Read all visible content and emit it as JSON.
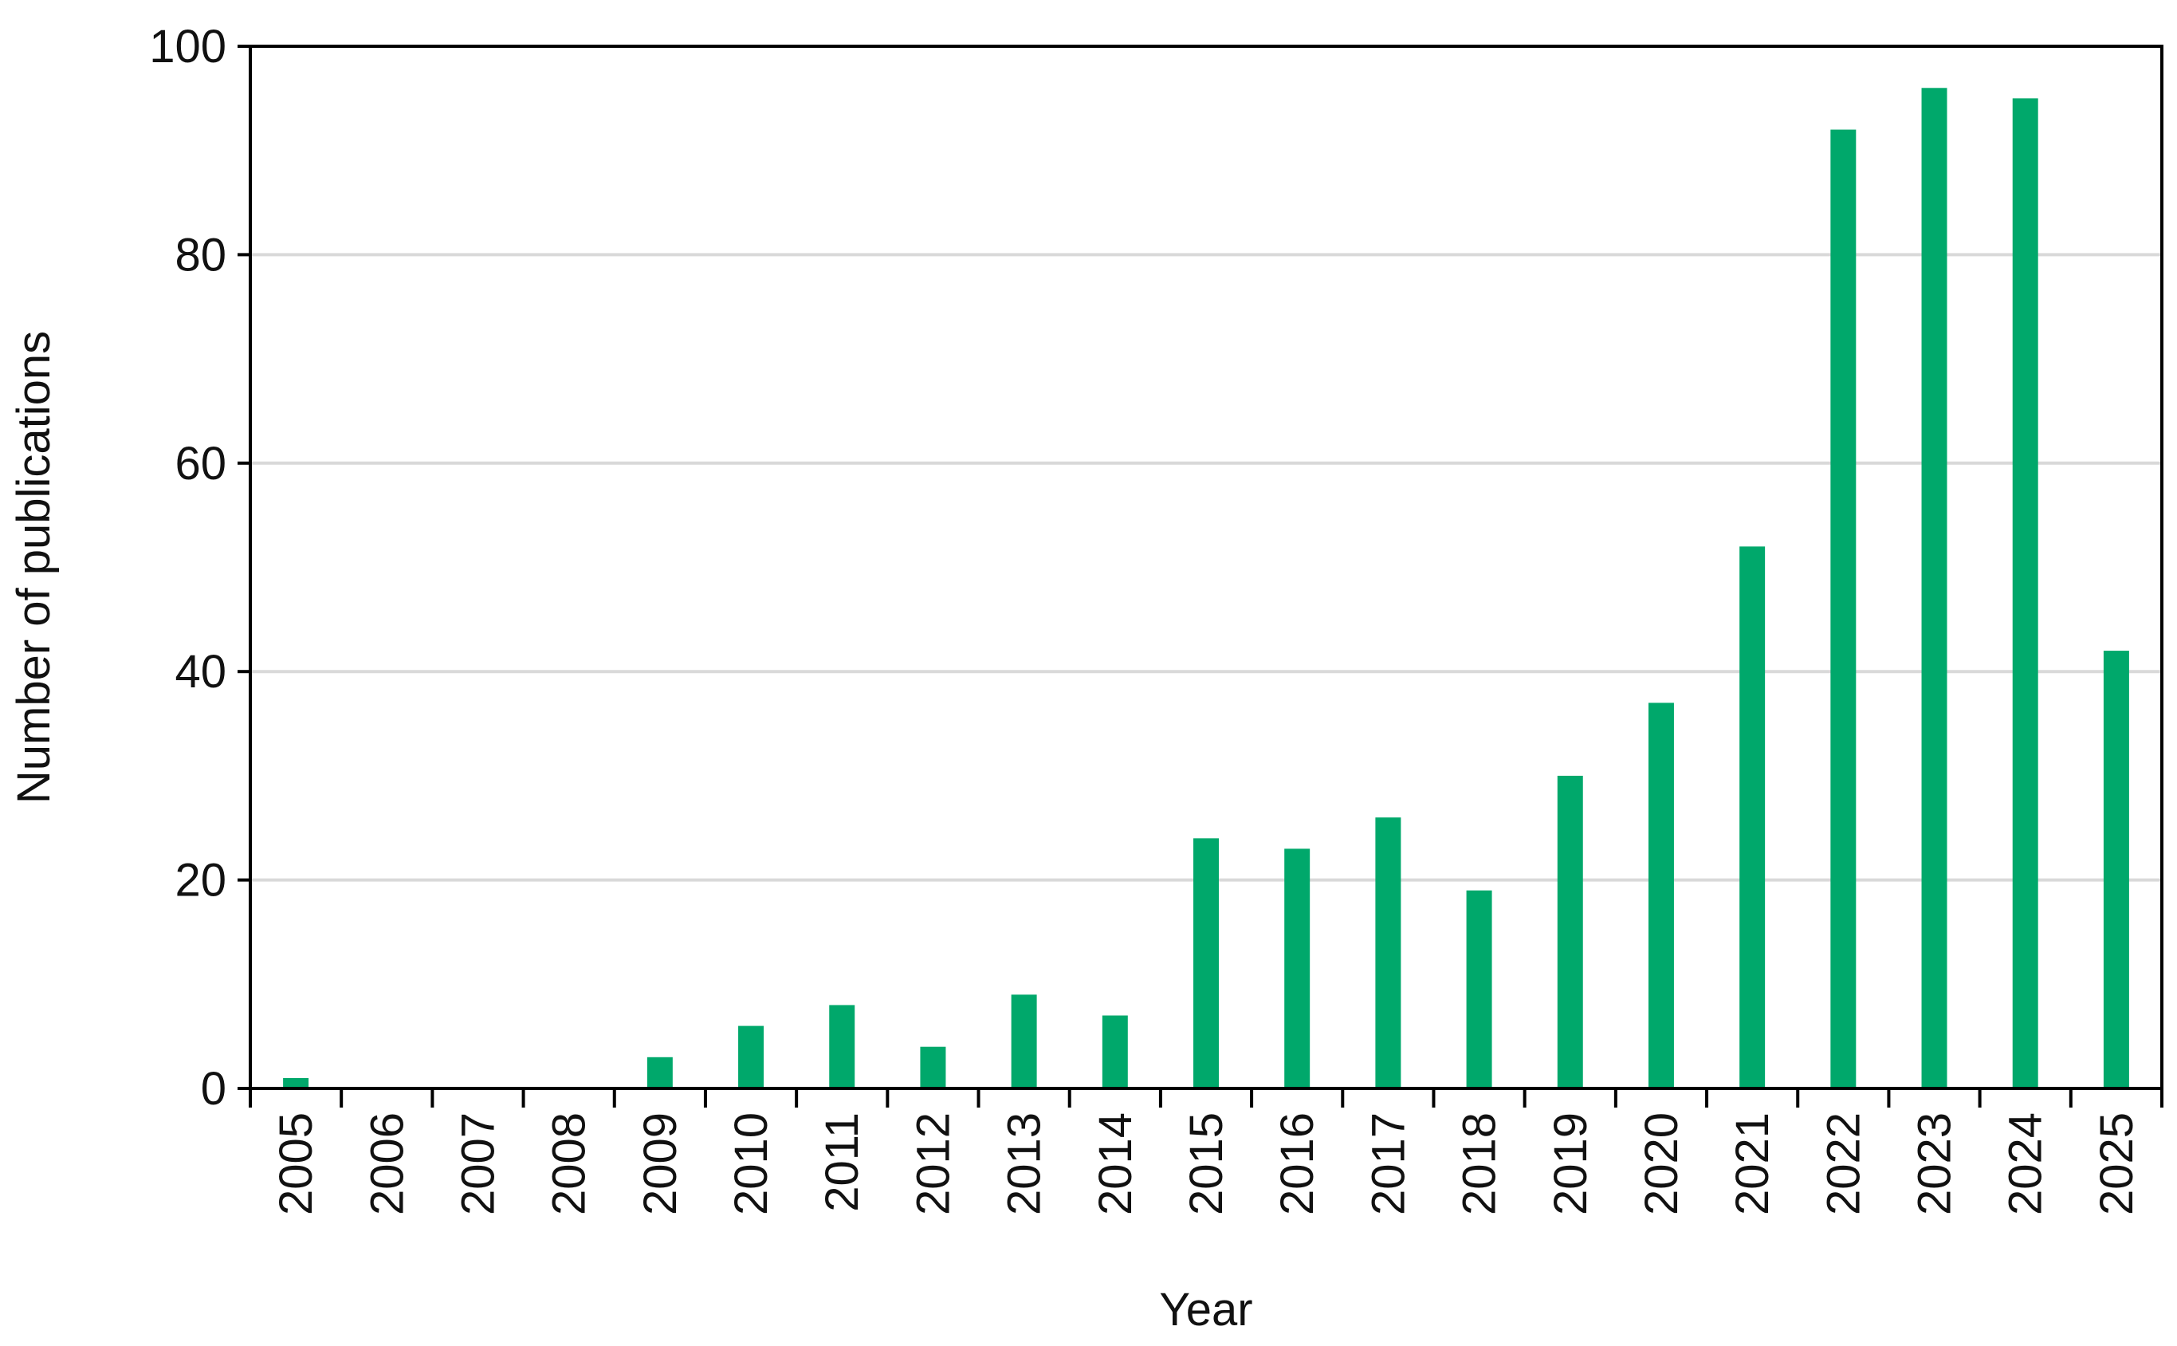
{
  "chart_data": {
    "type": "bar",
    "title": "",
    "xlabel": "Year",
    "ylabel": "Number of publications",
    "categories": [
      "2005",
      "2006",
      "2007",
      "2008",
      "2009",
      "2010",
      "2011",
      "2012",
      "2013",
      "2014",
      "2015",
      "2016",
      "2017",
      "2018",
      "2019",
      "2020",
      "2021",
      "2022",
      "2023",
      "2024",
      "2025"
    ],
    "values": [
      1,
      0,
      0,
      0,
      3,
      6,
      8,
      4,
      9,
      7,
      24,
      23,
      26,
      19,
      30,
      37,
      52,
      92,
      96,
      95,
      42
    ],
    "ylim": [
      0,
      100
    ],
    "yticks": [
      0,
      20,
      40,
      60,
      80,
      100
    ],
    "grid": "horizontal",
    "legend": "none",
    "colors": {
      "bar": "#00A86B",
      "grid": "#D9D9D9",
      "axis": "#000000"
    }
  }
}
